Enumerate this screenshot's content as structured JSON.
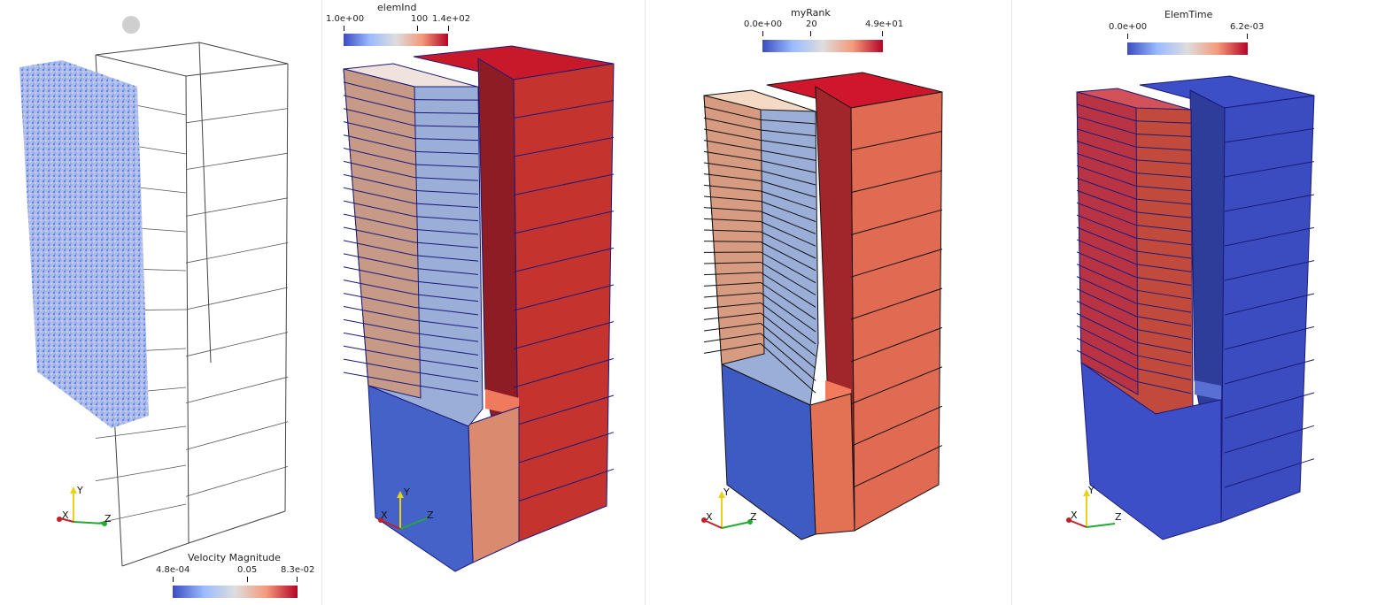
{
  "panels": {
    "velocity": {
      "colorbar": {
        "title": "Velocity Magnitude",
        "min": "4.8e-04",
        "mid": "0.05",
        "max": "8.3e-02"
      }
    },
    "elemind": {
      "colorbar": {
        "title": "elemInd",
        "min": "1.0e+00",
        "mid": "100",
        "max": "1.4e+02"
      }
    },
    "myrank": {
      "colorbar": {
        "title": "myRank",
        "min": "0.0e+00",
        "mid": "20",
        "max": "4.9e+01"
      }
    },
    "elemtime": {
      "colorbar": {
        "title": "ElemTime",
        "min": "0.0e+00",
        "max": "6.2e-03"
      }
    }
  },
  "axes": {
    "x": "X",
    "y": "Y",
    "z": "Z"
  },
  "colors": {
    "cool": "#3b4cc0",
    "warm": "#b40426",
    "mid": "#dddddd",
    "edge_blue": "#1a1a7a",
    "edge_black": "#111111"
  }
}
